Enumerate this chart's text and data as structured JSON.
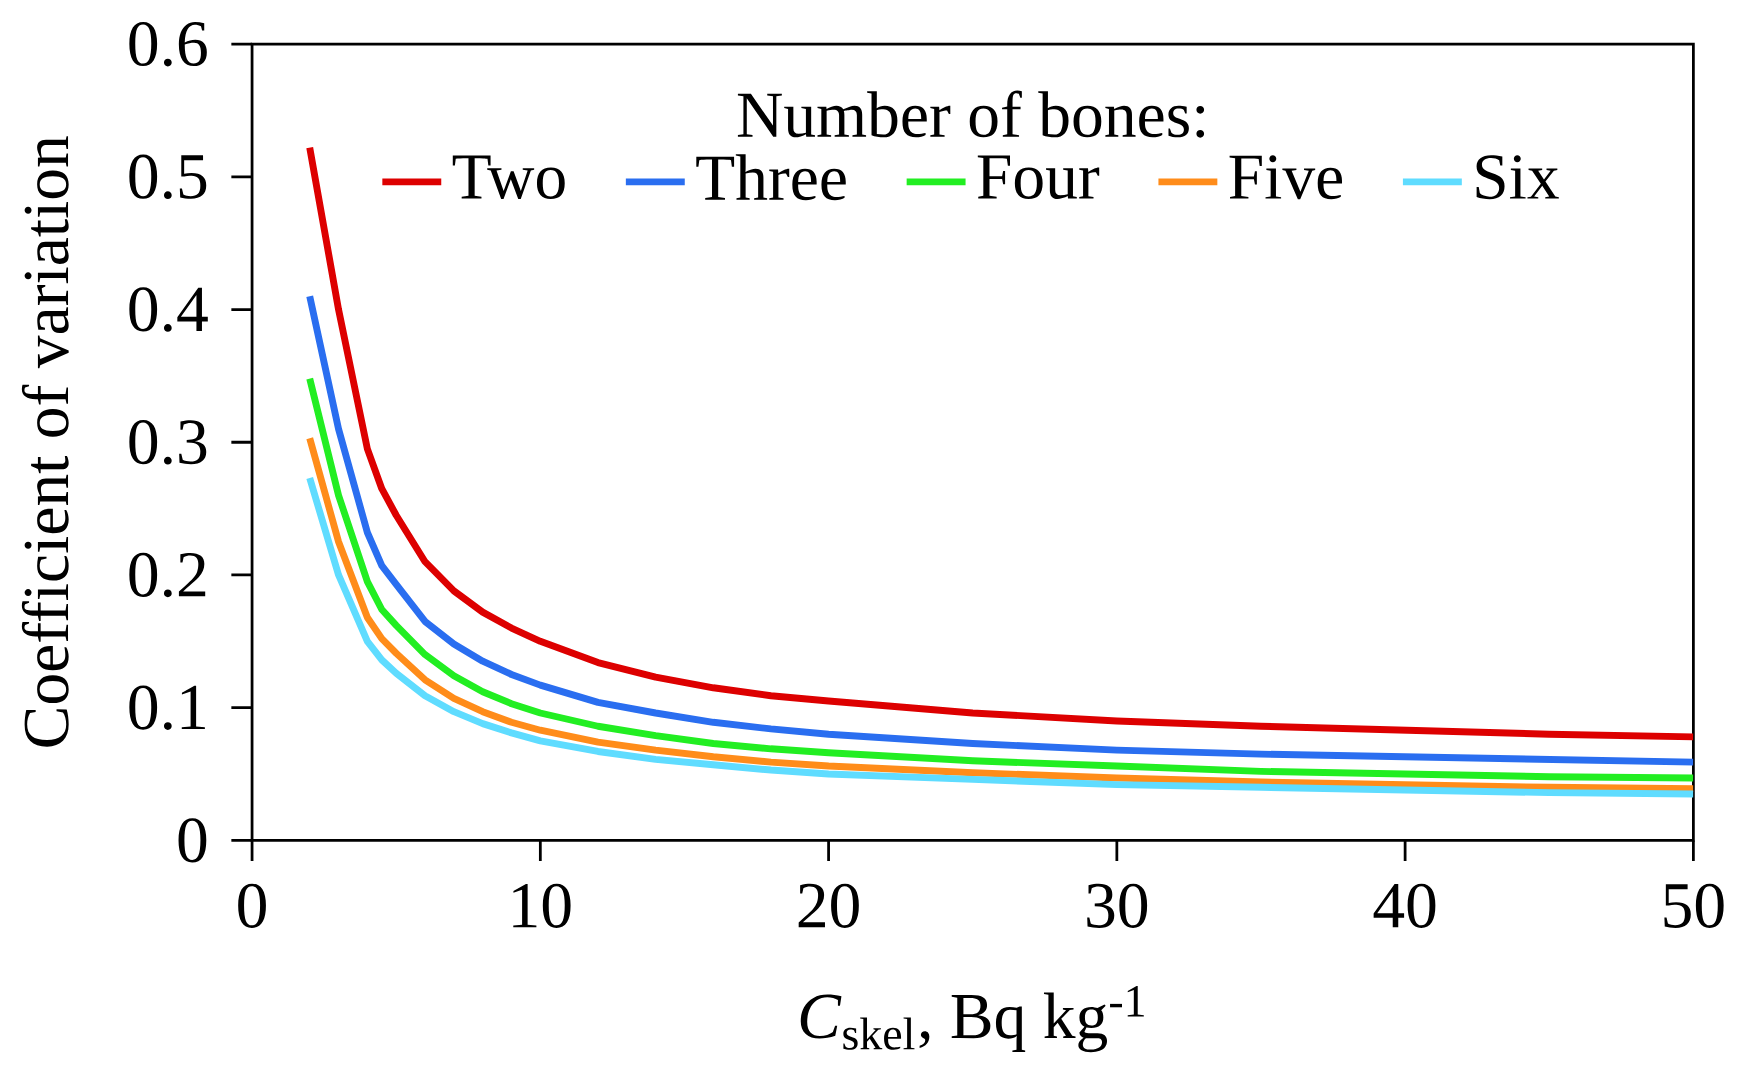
{
  "chart_data": {
    "type": "line",
    "xlabel": "*C*$_{skel}$, Bq kg$^{-1}$",
    "ylabel": "Coefficient of variation",
    "legend_title": "Number of  bones:",
    "legend": "top",
    "grid": false,
    "marker": "none",
    "line_style": "solid",
    "xlim": [
      0,
      50
    ],
    "ylim": [
      0,
      0.6
    ],
    "xticks": [
      0,
      10,
      20,
      30,
      40,
      50
    ],
    "yticks": [
      0,
      0.1,
      0.2,
      0.3,
      0.4,
      0.5,
      0.6
    ],
    "x": [
      2,
      3,
      4,
      4.5,
      5,
      6,
      7,
      8,
      9,
      10,
      12,
      14,
      16,
      18,
      20,
      25,
      30,
      35,
      40,
      45,
      50
    ],
    "series": [
      {
        "name": "Two",
        "color": "#dd0000",
        "values": [
          0.522,
          0.4,
          0.295,
          0.265,
          0.245,
          0.21,
          0.188,
          0.172,
          0.16,
          0.15,
          0.134,
          0.123,
          0.115,
          0.109,
          0.105,
          0.096,
          0.09,
          0.086,
          0.083,
          0.08,
          0.078
        ]
      },
      {
        "name": "Three",
        "color": "#2a6ef0",
        "values": [
          0.41,
          0.31,
          0.232,
          0.207,
          0.193,
          0.165,
          0.148,
          0.135,
          0.125,
          0.117,
          0.104,
          0.096,
          0.089,
          0.084,
          0.08,
          0.073,
          0.068,
          0.065,
          0.063,
          0.061,
          0.059
        ]
      },
      {
        "name": "Four",
        "color": "#22ee22",
        "values": [
          0.348,
          0.26,
          0.195,
          0.174,
          0.162,
          0.14,
          0.124,
          0.112,
          0.103,
          0.096,
          0.086,
          0.079,
          0.073,
          0.069,
          0.066,
          0.06,
          0.056,
          0.052,
          0.05,
          0.048,
          0.047
        ]
      },
      {
        "name": "Five",
        "color": "#ff8c1a",
        "values": [
          0.303,
          0.225,
          0.168,
          0.152,
          0.141,
          0.121,
          0.107,
          0.097,
          0.089,
          0.083,
          0.074,
          0.068,
          0.063,
          0.059,
          0.056,
          0.051,
          0.047,
          0.044,
          0.042,
          0.04,
          0.039
        ]
      },
      {
        "name": "Six",
        "color": "#5fdcff",
        "values": [
          0.273,
          0.2,
          0.15,
          0.136,
          0.126,
          0.109,
          0.097,
          0.088,
          0.081,
          0.075,
          0.067,
          0.061,
          0.057,
          0.053,
          0.05,
          0.046,
          0.042,
          0.04,
          0.038,
          0.036,
          0.035
        ]
      }
    ]
  }
}
